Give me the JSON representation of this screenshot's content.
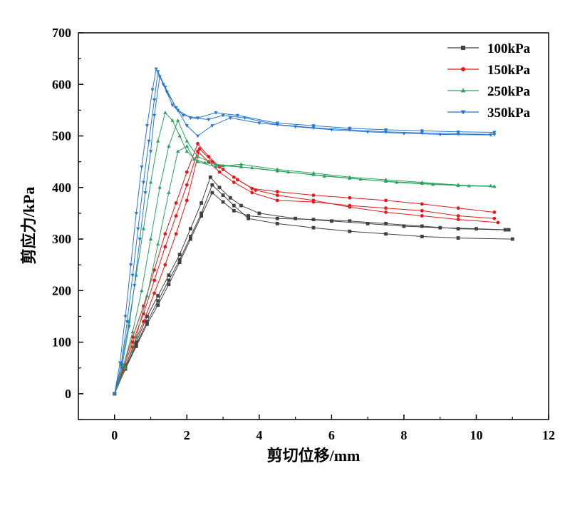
{
  "chart_data": {
    "type": "line",
    "xlabel": "剪切位移/mm",
    "ylabel": "剪应力/kPa",
    "xlim": [
      -1,
      12
    ],
    "ylim": [
      -50,
      700
    ],
    "xticks": [
      0,
      2,
      4,
      6,
      8,
      10,
      12
    ],
    "yticks": [
      0,
      100,
      200,
      300,
      400,
      500,
      600,
      700
    ],
    "grid": false,
    "legend_position": "top-right",
    "series": [
      {
        "name": "100kPa",
        "color": "#404040",
        "marker": "square",
        "curves": [
          [
            [
              0,
              0
            ],
            [
              0.3,
              55
            ],
            [
              0.6,
              100
            ],
            [
              0.9,
              150
            ],
            [
              1.2,
              190
            ],
            [
              1.5,
              230
            ],
            [
              1.8,
              270
            ],
            [
              2.1,
              320
            ],
            [
              2.4,
              370
            ],
            [
              2.65,
              420
            ],
            [
              2.9,
              400
            ],
            [
              3.2,
              380
            ],
            [
              3.5,
              365
            ],
            [
              4.0,
              350
            ],
            [
              5.0,
              340
            ],
            [
              6.0,
              335
            ],
            [
              7.0,
              330
            ],
            [
              8.0,
              325
            ],
            [
              9.0,
              322
            ],
            [
              10.0,
              320
            ],
            [
              10.9,
              318
            ]
          ],
          [
            [
              0,
              0
            ],
            [
              0.3,
              50
            ],
            [
              0.6,
              95
            ],
            [
              0.9,
              140
            ],
            [
              1.2,
              180
            ],
            [
              1.5,
              220
            ],
            [
              1.8,
              260
            ],
            [
              2.1,
              305
            ],
            [
              2.4,
              350
            ],
            [
              2.7,
              405
            ],
            [
              3.0,
              385
            ],
            [
              3.3,
              365
            ],
            [
              3.7,
              340
            ],
            [
              4.5,
              330
            ],
            [
              5.5,
              322
            ],
            [
              6.5,
              315
            ],
            [
              7.5,
              310
            ],
            [
              8.5,
              305
            ],
            [
              9.5,
              302
            ],
            [
              11.0,
              300
            ]
          ],
          [
            [
              0,
              0
            ],
            [
              0.3,
              48
            ],
            [
              0.6,
              92
            ],
            [
              0.9,
              135
            ],
            [
              1.2,
              172
            ],
            [
              1.5,
              212
            ],
            [
              1.8,
              255
            ],
            [
              2.1,
              300
            ],
            [
              2.4,
              345
            ],
            [
              2.7,
              390
            ],
            [
              3.0,
              372
            ],
            [
              3.3,
              355
            ],
            [
              3.7,
              345
            ],
            [
              4.5,
              340
            ],
            [
              5.5,
              338
            ],
            [
              6.5,
              335
            ],
            [
              7.5,
              330
            ],
            [
              8.5,
              325
            ],
            [
              9.5,
              320
            ],
            [
              10.8,
              318
            ]
          ]
        ]
      },
      {
        "name": "150kPa",
        "color": "#e31a1c",
        "marker": "circle",
        "curves": [
          [
            [
              0,
              0
            ],
            [
              0.25,
              55
            ],
            [
              0.5,
              110
            ],
            [
              0.8,
              170
            ],
            [
              1.1,
              240
            ],
            [
              1.4,
              310
            ],
            [
              1.7,
              370
            ],
            [
              2.0,
              430
            ],
            [
              2.3,
              485
            ],
            [
              2.6,
              460
            ],
            [
              2.9,
              440
            ],
            [
              3.3,
              420
            ],
            [
              3.8,
              398
            ],
            [
              4.5,
              392
            ],
            [
              5.5,
              385
            ],
            [
              6.5,
              380
            ],
            [
              7.5,
              375
            ],
            [
              8.5,
              368
            ],
            [
              9.5,
              360
            ],
            [
              10.5,
              352
            ]
          ],
          [
            [
              0,
              0
            ],
            [
              0.25,
              50
            ],
            [
              0.5,
              100
            ],
            [
              0.8,
              155
            ],
            [
              1.1,
              220
            ],
            [
              1.4,
              285
            ],
            [
              1.7,
              345
            ],
            [
              2.0,
              405
            ],
            [
              2.3,
              470
            ],
            [
              2.6,
              450
            ],
            [
              2.9,
              430
            ],
            [
              3.3,
              410
            ],
            [
              3.8,
              390
            ],
            [
              4.5,
              375
            ],
            [
              5.5,
              372
            ],
            [
              6.5,
              365
            ],
            [
              7.5,
              360
            ],
            [
              8.5,
              355
            ],
            [
              9.5,
              345
            ],
            [
              10.5,
              340
            ]
          ],
          [
            [
              0,
              0
            ],
            [
              0.25,
              45
            ],
            [
              0.5,
              90
            ],
            [
              0.8,
              140
            ],
            [
              1.1,
              195
            ],
            [
              1.4,
              250
            ],
            [
              1.7,
              310
            ],
            [
              2.0,
              375
            ],
            [
              2.35,
              475
            ],
            [
              2.7,
              450
            ],
            [
              3.0,
              435
            ],
            [
              3.4,
              415
            ],
            [
              3.9,
              395
            ],
            [
              4.5,
              385
            ],
            [
              5.5,
              375
            ],
            [
              6.5,
              362
            ],
            [
              7.5,
              352
            ],
            [
              8.5,
              345
            ],
            [
              9.5,
              338
            ],
            [
              10.6,
              332
            ]
          ]
        ]
      },
      {
        "name": "250kPa",
        "color": "#2ca25f",
        "marker": "triangle-up",
        "curves": [
          [
            [
              0,
              0
            ],
            [
              0.2,
              60
            ],
            [
              0.4,
              140
            ],
            [
              0.6,
              230
            ],
            [
              0.8,
              320
            ],
            [
              1.0,
              410
            ],
            [
              1.2,
              490
            ],
            [
              1.4,
              545
            ],
            [
              1.6,
              530
            ],
            [
              1.8,
              500
            ],
            [
              2.0,
              470
            ],
            [
              2.3,
              450
            ],
            [
              2.8,
              440
            ],
            [
              3.5,
              445
            ],
            [
              4.5,
              435
            ],
            [
              5.5,
              428
            ],
            [
              6.5,
              420
            ],
            [
              7.5,
              415
            ],
            [
              8.5,
              410
            ],
            [
              9.5,
              405
            ],
            [
              10.5,
              402
            ]
          ],
          [
            [
              0,
              0
            ],
            [
              0.25,
              55
            ],
            [
              0.5,
              120
            ],
            [
              0.75,
              200
            ],
            [
              1.0,
              300
            ],
            [
              1.25,
              400
            ],
            [
              1.5,
              480
            ],
            [
              1.75,
              530
            ],
            [
              2.0,
              490
            ],
            [
              2.3,
              460
            ],
            [
              2.8,
              445
            ],
            [
              3.5,
              440
            ],
            [
              4.5,
              432
            ],
            [
              5.5,
              425
            ],
            [
              6.5,
              418
            ],
            [
              7.5,
              412
            ],
            [
              8.5,
              408
            ],
            [
              9.5,
              404
            ],
            [
              10.4,
              403
            ]
          ],
          [
            [
              0,
              0
            ],
            [
              0.3,
              50
            ],
            [
              0.6,
              110
            ],
            [
              0.9,
              190
            ],
            [
              1.2,
              290
            ],
            [
              1.5,
              390
            ],
            [
              1.75,
              470
            ],
            [
              2.0,
              480
            ],
            [
              2.2,
              455
            ],
            [
              2.5,
              448
            ],
            [
              3.0,
              442
            ],
            [
              3.8,
              438
            ],
            [
              4.8,
              430
            ],
            [
              5.8,
              422
            ],
            [
              6.8,
              416
            ],
            [
              7.8,
              410
            ],
            [
              8.8,
              406
            ],
            [
              9.8,
              403
            ],
            [
              10.5,
              402
            ]
          ]
        ]
      },
      {
        "name": "350kPa",
        "color": "#2878d0",
        "marker": "triangle-down",
        "curves": [
          [
            [
              0,
              0
            ],
            [
              0.15,
              60
            ],
            [
              0.3,
              150
            ],
            [
              0.45,
              250
            ],
            [
              0.6,
              350
            ],
            [
              0.75,
              440
            ],
            [
              0.9,
              520
            ],
            [
              1.05,
              590
            ],
            [
              1.15,
              630
            ],
            [
              1.35,
              600
            ],
            [
              1.6,
              560
            ],
            [
              1.9,
              540
            ],
            [
              2.3,
              535
            ],
            [
              2.8,
              545
            ],
            [
              3.4,
              540
            ],
            [
              4.5,
              525
            ],
            [
              5.5,
              520
            ],
            [
              6.5,
              515
            ],
            [
              7.5,
              512
            ],
            [
              8.5,
              510
            ],
            [
              9.5,
              508
            ],
            [
              10.5,
              507
            ]
          ],
          [
            [
              0,
              0
            ],
            [
              0.18,
              55
            ],
            [
              0.35,
              140
            ],
            [
              0.5,
              230
            ],
            [
              0.65,
              320
            ],
            [
              0.8,
              410
            ],
            [
              0.95,
              490
            ],
            [
              1.1,
              570
            ],
            [
              1.2,
              625
            ],
            [
              1.4,
              595
            ],
            [
              1.7,
              555
            ],
            [
              2.0,
              520
            ],
            [
              2.3,
              500
            ],
            [
              2.7,
              520
            ],
            [
              3.2,
              535
            ],
            [
              4.0,
              525
            ],
            [
              5.0,
              518
            ],
            [
              6.0,
              512
            ],
            [
              7.0,
              508
            ],
            [
              8.0,
              505
            ],
            [
              9.0,
              503
            ],
            [
              10.4,
              502
            ]
          ],
          [
            [
              0,
              0
            ],
            [
              0.2,
              50
            ],
            [
              0.4,
              130
            ],
            [
              0.55,
              210
            ],
            [
              0.7,
              300
            ],
            [
              0.85,
              390
            ],
            [
              1.0,
              470
            ],
            [
              1.1,
              540
            ],
            [
              1.25,
              615
            ],
            [
              1.45,
              585
            ],
            [
              1.75,
              550
            ],
            [
              2.1,
              535
            ],
            [
              2.6,
              532
            ],
            [
              3.0,
              540
            ],
            [
              3.6,
              535
            ],
            [
              4.5,
              522
            ],
            [
              5.5,
              516
            ],
            [
              6.5,
              512
            ],
            [
              7.5,
              508
            ],
            [
              8.5,
              506
            ],
            [
              9.5,
              504
            ],
            [
              10.5,
              503
            ]
          ]
        ]
      }
    ]
  }
}
